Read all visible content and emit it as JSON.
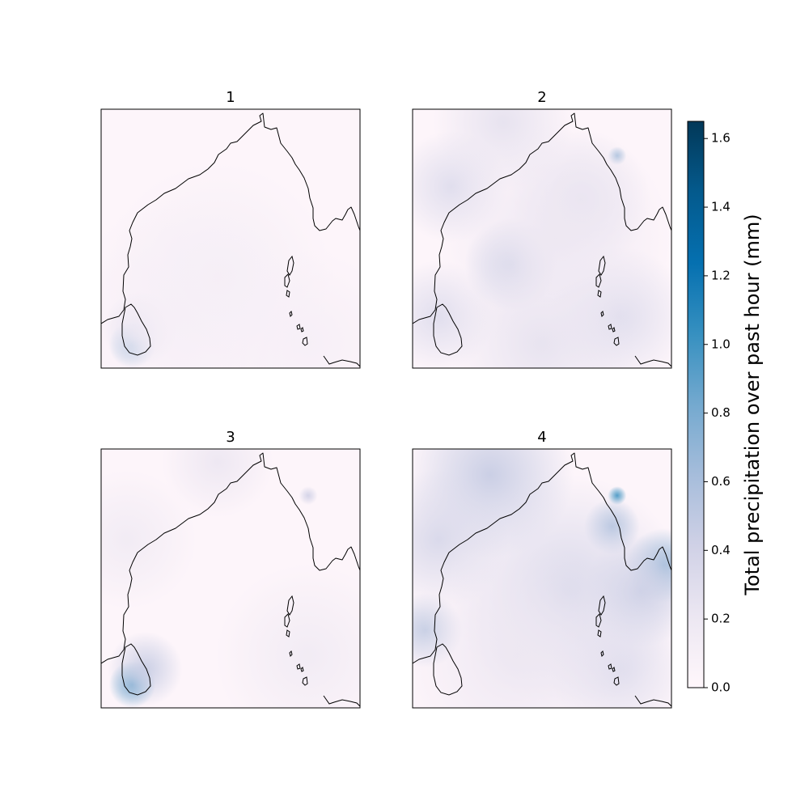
{
  "chart_data": {
    "type": "heatmap",
    "panels": [
      {
        "title": "1",
        "blobs": [
          {
            "lon": 0.12,
            "lat": 0.91,
            "value": 0.75,
            "spread": 0.05
          },
          {
            "lon": 0.15,
            "lat": 0.85,
            "value": 0.35,
            "spread": 0.08
          },
          {
            "lon": 0.45,
            "lat": 0.65,
            "value": 0.12,
            "spread": 0.25
          },
          {
            "lon": 0.3,
            "lat": 0.8,
            "value": 0.1,
            "spread": 0.25
          },
          {
            "lon": 0.8,
            "lat": 0.9,
            "value": 0.1,
            "spread": 0.2
          }
        ]
      },
      {
        "title": "2",
        "blobs": [
          {
            "lon": 0.38,
            "lat": 0.6,
            "value": 0.45,
            "spread": 0.1
          },
          {
            "lon": 0.15,
            "lat": 0.3,
            "value": 0.3,
            "spread": 0.12
          },
          {
            "lon": 0.1,
            "lat": 0.8,
            "value": 0.3,
            "spread": 0.12
          },
          {
            "lon": 0.79,
            "lat": 0.18,
            "value": 0.65,
            "spread": 0.02
          },
          {
            "lon": 0.65,
            "lat": 0.35,
            "value": 0.25,
            "spread": 0.15
          },
          {
            "lon": 0.8,
            "lat": 0.8,
            "value": 0.3,
            "spread": 0.15
          },
          {
            "lon": 0.5,
            "lat": 0.9,
            "value": 0.25,
            "spread": 0.2
          },
          {
            "lon": 0.35,
            "lat": 0.05,
            "value": 0.25,
            "spread": 0.15
          },
          {
            "lon": 0.55,
            "lat": 0.5,
            "value": 0.2,
            "spread": 0.25
          }
        ]
      },
      {
        "title": "3",
        "blobs": [
          {
            "lon": 0.12,
            "lat": 0.91,
            "value": 0.85,
            "spread": 0.05
          },
          {
            "lon": 0.17,
            "lat": 0.85,
            "value": 0.45,
            "spread": 0.08
          },
          {
            "lon": 0.8,
            "lat": 0.18,
            "value": 0.4,
            "spread": 0.02
          },
          {
            "lon": 0.45,
            "lat": 0.05,
            "value": 0.2,
            "spread": 0.12
          },
          {
            "lon": 0.8,
            "lat": 0.8,
            "value": 0.15,
            "spread": 0.2
          },
          {
            "lon": 0.1,
            "lat": 0.35,
            "value": 0.15,
            "spread": 0.15
          }
        ]
      },
      {
        "title": "4",
        "blobs": [
          {
            "lon": 0.79,
            "lat": 0.18,
            "value": 1.0,
            "spread": 0.02
          },
          {
            "lon": 0.77,
            "lat": 0.3,
            "value": 0.6,
            "spread": 0.06
          },
          {
            "lon": 0.97,
            "lat": 0.45,
            "value": 0.7,
            "spread": 0.08
          },
          {
            "lon": 0.88,
            "lat": 0.55,
            "value": 0.45,
            "spread": 0.12
          },
          {
            "lon": 0.3,
            "lat": 0.1,
            "value": 0.45,
            "spread": 0.18
          },
          {
            "lon": 0.05,
            "lat": 0.7,
            "value": 0.5,
            "spread": 0.08
          },
          {
            "lon": 0.6,
            "lat": 0.55,
            "value": 0.35,
            "spread": 0.25
          },
          {
            "lon": 0.1,
            "lat": 0.35,
            "value": 0.35,
            "spread": 0.15
          },
          {
            "lon": 0.8,
            "lat": 0.85,
            "value": 0.3,
            "spread": 0.15
          },
          {
            "lon": 0.4,
            "lat": 0.8,
            "value": 0.2,
            "spread": 0.25
          }
        ]
      }
    ],
    "colorbar": {
      "label": "Total precipitation over past hour (mm)",
      "vmin": 0.0,
      "vmax": 1.65,
      "ticks": [
        "0.0",
        "0.2",
        "0.4",
        "0.6",
        "0.8",
        "1.0",
        "1.2",
        "1.4",
        "1.6"
      ],
      "colormap": "PuBu",
      "colors": [
        "#fff7fb",
        "#ece7f2",
        "#d0d1e6",
        "#a6bddb",
        "#74a9cf",
        "#3690c0",
        "#0570b0",
        "#045a8d",
        "#023858"
      ]
    }
  }
}
